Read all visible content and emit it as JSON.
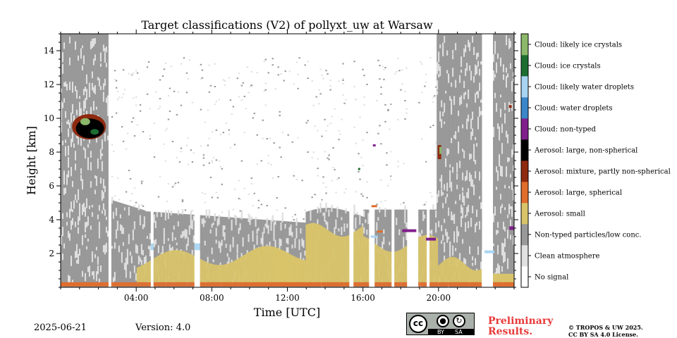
{
  "chart_data": {
    "type": "heatmap",
    "title": "Target classifications (V2) of pollyxt_uw at Warsaw",
    "xlabel": "Time [UTC]",
    "ylabel": "Height [km]",
    "x_range_hours": [
      0,
      24
    ],
    "x_ticks": [
      {
        "value": 4,
        "label": "04:00"
      },
      {
        "value": 8,
        "label": "08:00"
      },
      {
        "value": 12,
        "label": "12:00"
      },
      {
        "value": 16,
        "label": "16:00"
      },
      {
        "value": 20,
        "label": "20:00"
      }
    ],
    "ylim": [
      0,
      15
    ],
    "y_ticks": [
      {
        "value": 2,
        "label": "2"
      },
      {
        "value": 4,
        "label": "4"
      },
      {
        "value": 6,
        "label": "6"
      },
      {
        "value": 8,
        "label": "8"
      },
      {
        "value": 10,
        "label": "10"
      },
      {
        "value": 12,
        "label": "12"
      },
      {
        "value": 14,
        "label": "14"
      }
    ],
    "classes": [
      {
        "label": "No signal",
        "color": "#ffffff"
      },
      {
        "label": "Clean atmosphere",
        "color": "#e0e0e0"
      },
      {
        "label": "Non-typed particles/low conc.",
        "color": "#999999"
      },
      {
        "label": "Aerosol: small",
        "color": "#d9c46a"
      },
      {
        "label": "Aerosol: large, spherical",
        "color": "#e06d2c"
      },
      {
        "label": "Aerosol: mixture, partly non-spherical",
        "color": "#8e2a0f"
      },
      {
        "label": "Aerosol: large, non-spherical",
        "color": "#000000"
      },
      {
        "label": "Cloud: non-typed",
        "color": "#801f8c"
      },
      {
        "label": "Cloud: water droplets",
        "color": "#3a86c8"
      },
      {
        "label": "Cloud: likely water droplets",
        "color": "#a8d4f2"
      },
      {
        "label": "Cloud: ice crystals",
        "color": "#1e6e32"
      },
      {
        "label": "Cloud: likely ice crystals",
        "color": "#8bb86a"
      }
    ],
    "no_signal_gaps_hours": [
      {
        "start": 2.55,
        "end": 2.65
      },
      {
        "start": 4.8,
        "end": 4.95
      },
      {
        "start": 7.05,
        "end": 7.35
      },
      {
        "start": 15.3,
        "end": 15.5
      },
      {
        "start": 16.3,
        "end": 16.6
      },
      {
        "start": 17.5,
        "end": 17.65
      },
      {
        "start": 18.3,
        "end": 18.95
      },
      {
        "start": 19.4,
        "end": 19.5
      },
      {
        "start": 22.3,
        "end": 22.9
      }
    ]
  },
  "footer": {
    "date": "2025-06-21",
    "version": "Version: 4.0",
    "preliminary_line1": "Preliminary",
    "preliminary_line2": "Results.",
    "copyright_line1": "© TROPOS & UW 2025.",
    "copyright_line2": "CC BY SA 4.0 License.",
    "license_badge_by": "BY",
    "license_badge_sa": "SA",
    "license_badge_cc": "cc"
  },
  "colors": {
    "preliminary_text": "#e83a3a"
  }
}
